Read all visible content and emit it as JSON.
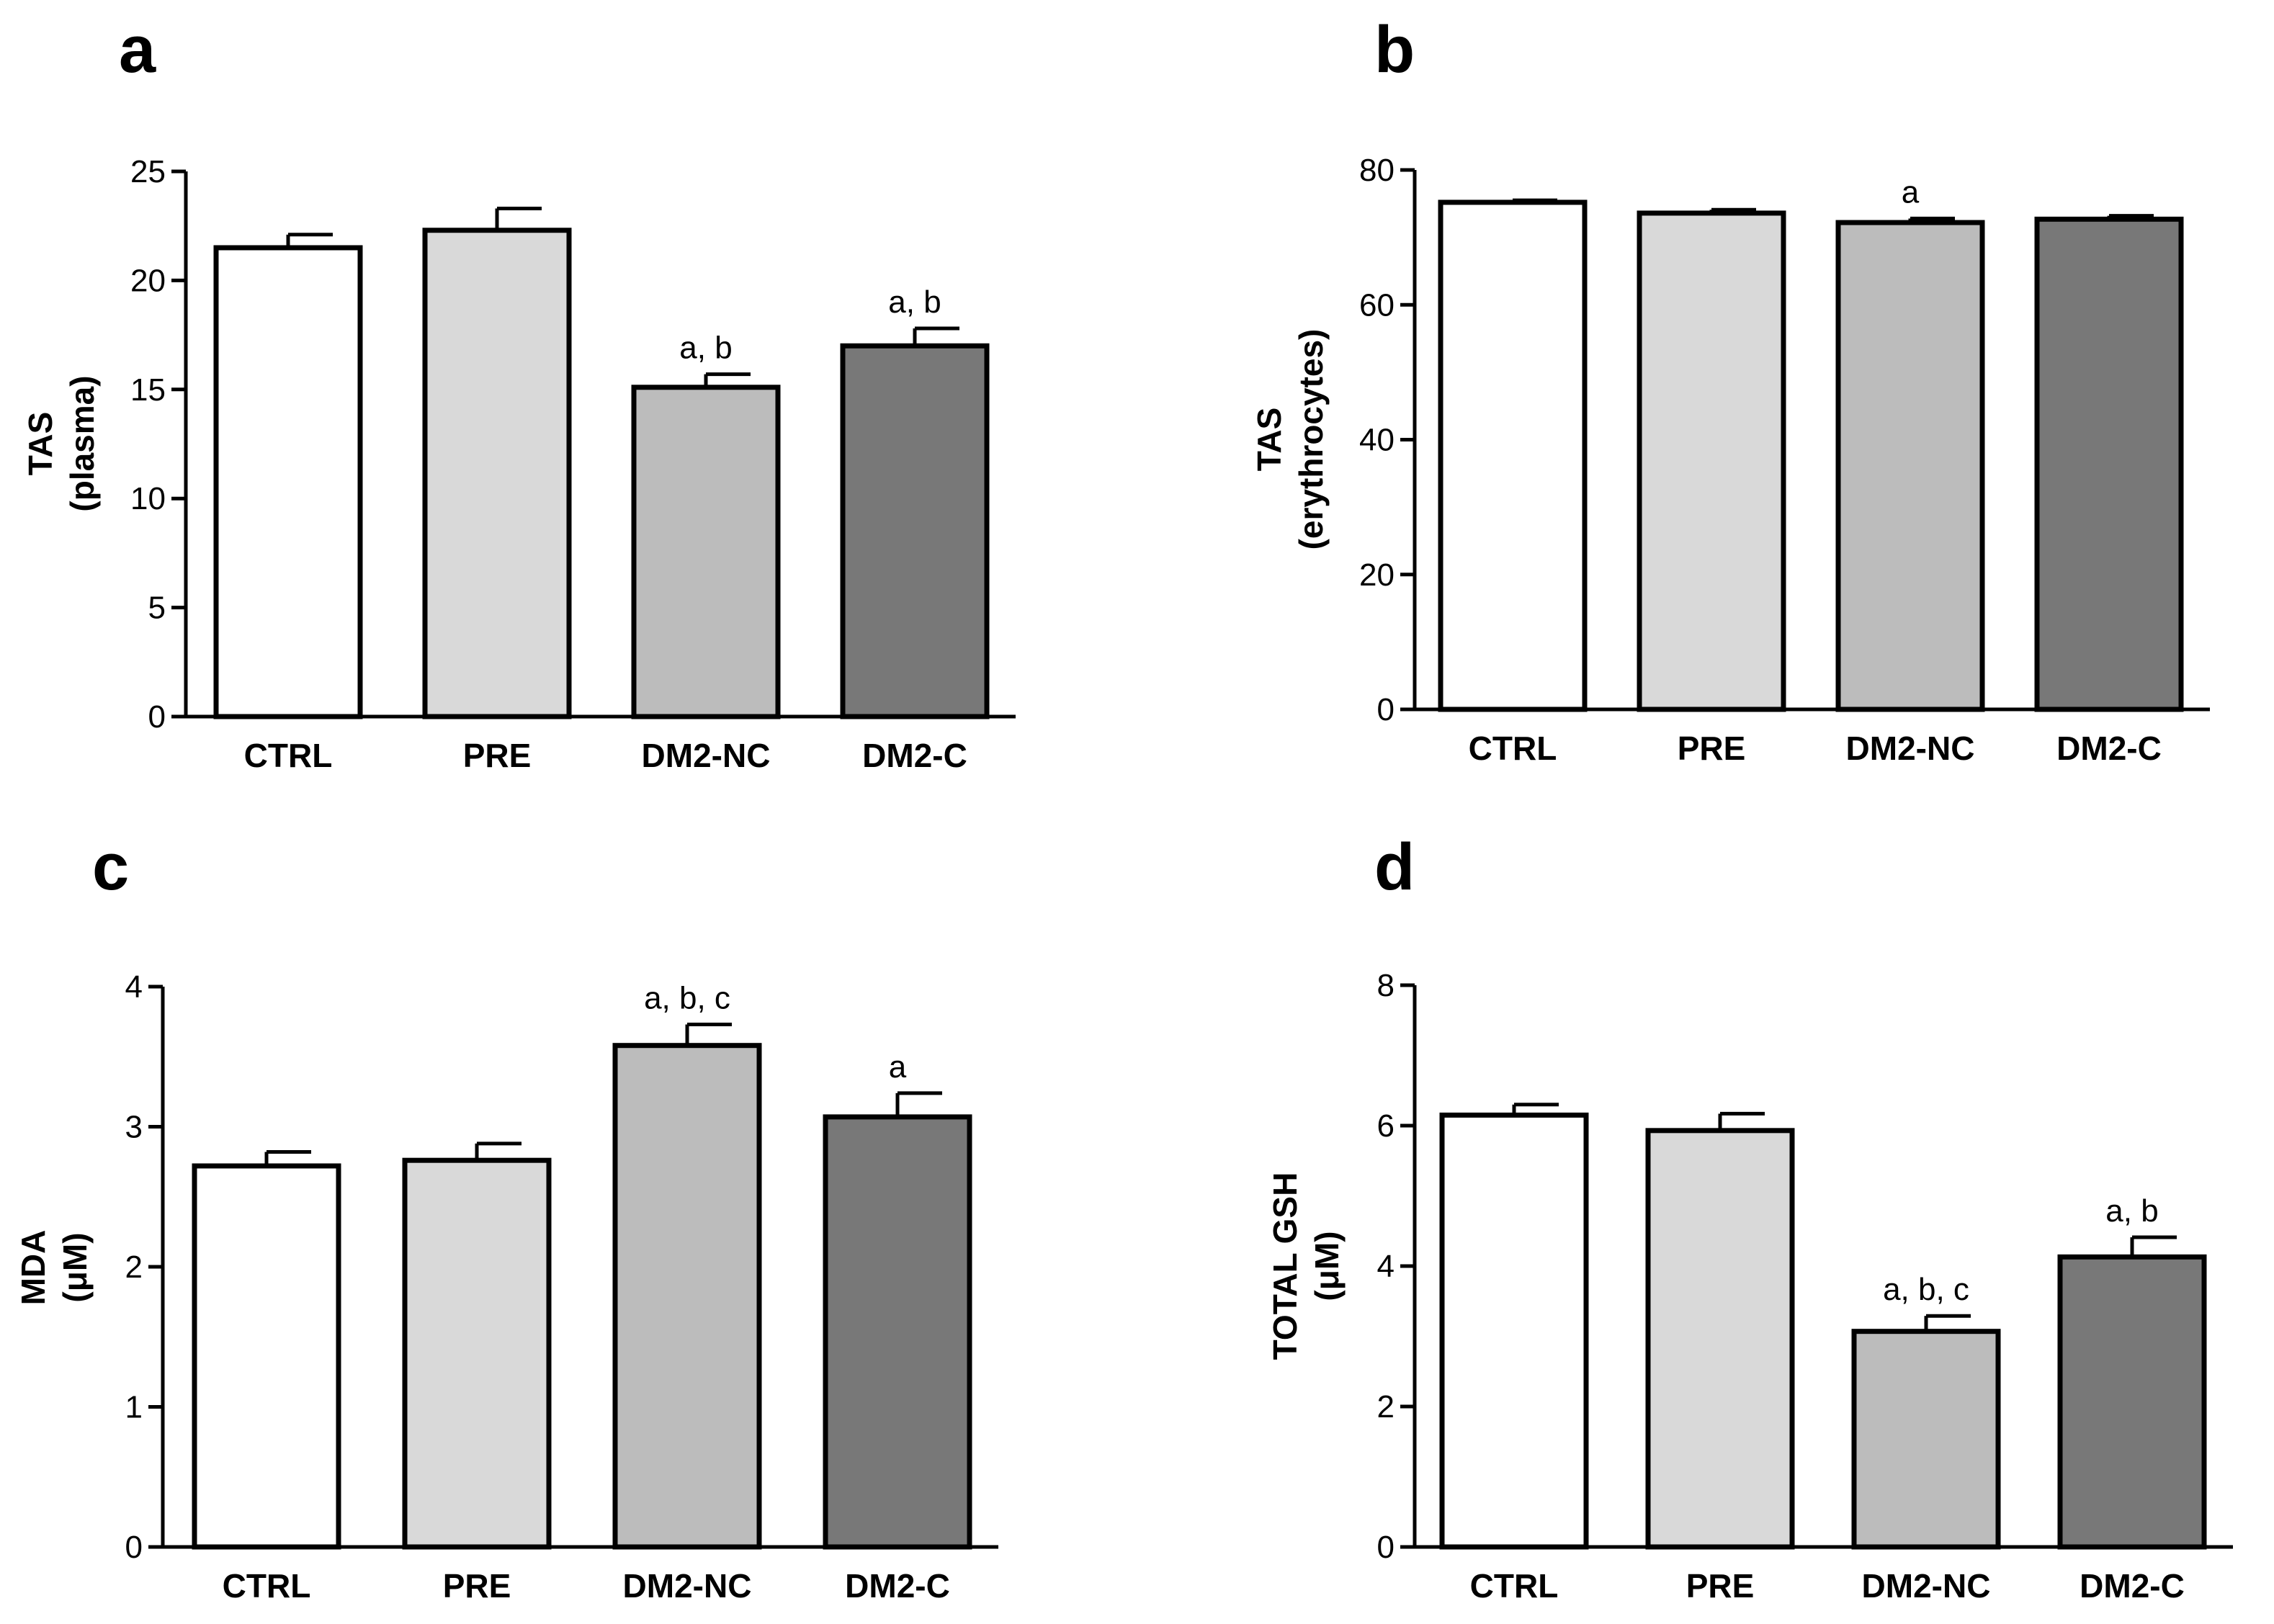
{
  "chart_data": [
    {
      "panel": "a",
      "type": "bar",
      "categories": [
        "CTRL",
        "PRE",
        "DM2-NC",
        "DM2-C"
      ],
      "values": [
        21.5,
        22.3,
        15.1,
        17.0
      ],
      "errors": [
        0.6,
        1.0,
        0.6,
        0.8
      ],
      "annotations": [
        "",
        "",
        "a, b",
        "a, b"
      ],
      "ylabel": [
        "TAS",
        "(plasma)"
      ],
      "ylim": [
        0,
        25
      ],
      "yticks": [
        0,
        5,
        10,
        15,
        20,
        25
      ],
      "bar_colors": [
        "#ffffff",
        "#d9d9d9",
        "#bcbcbc",
        "#787878"
      ]
    },
    {
      "panel": "b",
      "type": "bar",
      "categories": [
        "CTRL",
        "PRE",
        "DM2-NC",
        "DM2-C"
      ],
      "values": [
        75.2,
        73.6,
        72.2,
        72.7
      ],
      "errors": [
        0.3,
        0.5,
        0.6,
        0.5
      ],
      "annotations": [
        "",
        "",
        "a",
        ""
      ],
      "ylabel": [
        "TAS",
        "(erythrocytes)"
      ],
      "ylim": [
        0,
        80
      ],
      "yticks": [
        0,
        20,
        40,
        60,
        80
      ],
      "bar_colors": [
        "#ffffff",
        "#d9d9d9",
        "#bcbcbc",
        "#787878"
      ]
    },
    {
      "panel": "c",
      "type": "bar",
      "categories": [
        "CTRL",
        "PRE",
        "DM2-NC",
        "DM2-C"
      ],
      "values": [
        2.72,
        2.76,
        3.58,
        3.07
      ],
      "errors": [
        0.1,
        0.12,
        0.15,
        0.17
      ],
      "annotations": [
        "",
        "",
        "a, b, c",
        "a"
      ],
      "ylabel": [
        "MDA",
        "(μM)"
      ],
      "ylim": [
        0,
        4
      ],
      "yticks": [
        0,
        1,
        2,
        3,
        4
      ],
      "bar_colors": [
        "#ffffff",
        "#d9d9d9",
        "#bcbcbc",
        "#787878"
      ]
    },
    {
      "panel": "d",
      "type": "bar",
      "categories": [
        "CTRL",
        "PRE",
        "DM2-NC",
        "DM2-C"
      ],
      "values": [
        6.15,
        5.93,
        3.07,
        4.13
      ],
      "errors": [
        0.15,
        0.24,
        0.22,
        0.28
      ],
      "annotations": [
        "",
        "",
        "a, b, c",
        "a, b"
      ],
      "ylabel": [
        "TOTAL GSH",
        "(μM)"
      ],
      "ylim": [
        0,
        8
      ],
      "yticks": [
        0,
        2,
        4,
        6,
        8
      ],
      "bar_colors": [
        "#ffffff",
        "#d9d9d9",
        "#bcbcbc",
        "#787878"
      ]
    }
  ]
}
